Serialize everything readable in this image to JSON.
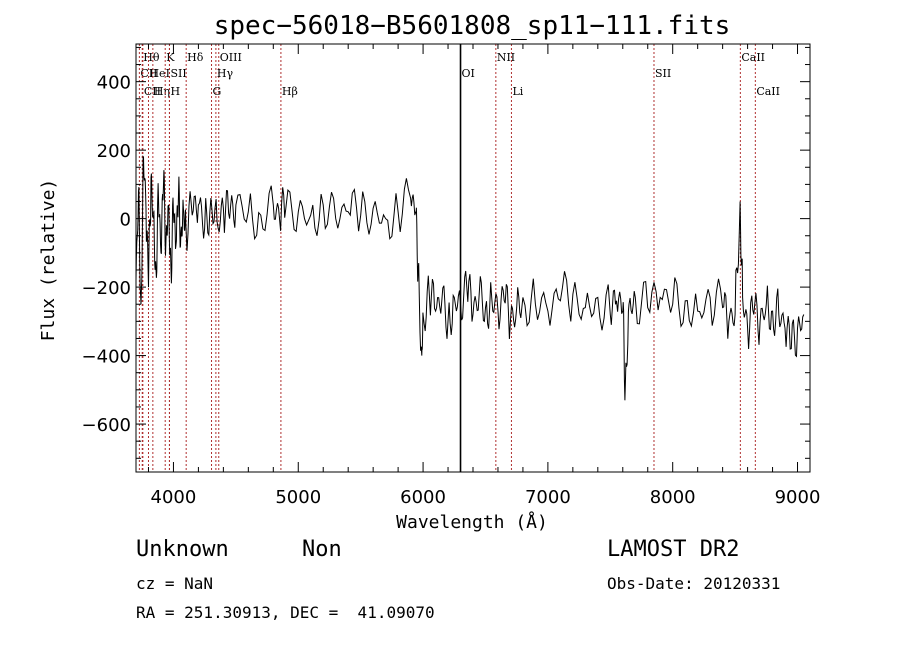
{
  "chart_data": {
    "type": "line",
    "title": "spec−56018−B5601808_sp11−111.fits",
    "xlabel": "Wavelength (Å)",
    "ylabel": "Flux (relative)",
    "xlim": [
      3700,
      9100
    ],
    "ylim": [
      -740,
      510
    ],
    "x_ticks": [
      {
        "value": 4000,
        "label": "4000"
      },
      {
        "value": 5000,
        "label": "5000"
      },
      {
        "value": 6000,
        "label": "6000"
      },
      {
        "value": 7000,
        "label": "7000"
      },
      {
        "value": 8000,
        "label": "8000"
      },
      {
        "value": 9000,
        "label": "9000"
      }
    ],
    "y_ticks": [
      {
        "value": 400,
        "label": "400"
      },
      {
        "value": 200,
        "label": "200"
      },
      {
        "value": 0,
        "label": "0"
      },
      {
        "value": -200,
        "label": "−200"
      },
      {
        "value": -400,
        "label": "−400"
      },
      {
        "value": -600,
        "label": "−600"
      }
    ],
    "grid": false,
    "series": [
      {
        "color": "#000000",
        "x": [
          3700,
          3720,
          3740,
          3760,
          3780,
          3800,
          3820,
          3840,
          3860,
          3880,
          3900,
          3920,
          3940,
          3960,
          3980,
          4000,
          4020,
          4040,
          4060,
          4080,
          4100,
          4150,
          4200,
          4250,
          4300,
          4350,
          4400,
          4450,
          4500,
          4600,
          4700,
          4800,
          4850,
          4900,
          5000,
          5100,
          5200,
          5300,
          5400,
          5500,
          5600,
          5700,
          5800,
          5900,
          5940,
          5960,
          5990,
          6000,
          6050,
          6100,
          6150,
          6200,
          6250,
          6300,
          6350,
          6400,
          6450,
          6500,
          6550,
          6600,
          6650,
          6700,
          6750,
          6800,
          6900,
          7000,
          7100,
          7200,
          7300,
          7400,
          7500,
          7550,
          7600,
          7620,
          7650,
          7700,
          7800,
          7900,
          8000,
          8100,
          8200,
          8300,
          8400,
          8450,
          8500,
          8540,
          8560,
          8600,
          8650,
          8700,
          8750,
          8800,
          8850,
          8900,
          8950,
          9000,
          9050
        ],
        "y": [
          -180,
          80,
          -250,
          180,
          30,
          -200,
          120,
          0,
          -150,
          60,
          -100,
          100,
          -60,
          40,
          -140,
          20,
          -80,
          60,
          -40,
          30,
          -20,
          10,
          40,
          -30,
          60,
          -10,
          30,
          0,
          40,
          20,
          10,
          40,
          0,
          30,
          20,
          10,
          40,
          0,
          20,
          10,
          30,
          0,
          20,
          60,
          20,
          -150,
          -400,
          -280,
          -220,
          -270,
          -240,
          -300,
          -230,
          -250,
          -200,
          -280,
          -220,
          -260,
          -230,
          -270,
          -240,
          -300,
          -260,
          -230,
          -250,
          -270,
          -240,
          -220,
          -260,
          -230,
          -280,
          -240,
          -270,
          -490,
          -250,
          -230,
          -260,
          -230,
          -250,
          -240,
          -270,
          -230,
          -260,
          -300,
          -280,
          50,
          -230,
          -320,
          -280,
          -300,
          -250,
          -270,
          -280,
          -320,
          -380,
          -320,
          -280
        ]
      }
    ],
    "lines": [
      {
        "label": "CII",
        "x": 3727,
        "row": 2,
        "color": "#000000"
      },
      {
        "label": "Hθ",
        "x": 3750,
        "row": 1,
        "color": "#000000"
      },
      {
        "label": "CII",
        "x": 3755,
        "row": 3,
        "color": "#000000"
      },
      {
        "label": "HeI",
        "x": 3800,
        "row": 2,
        "color": "#000000"
      },
      {
        "label": "Hη",
        "x": 3835,
        "row": 3,
        "color": "#000000"
      },
      {
        "label": "K",
        "x": 3934,
        "row": 1,
        "color": "#000000"
      },
      {
        "label": "SII",
        "x": 3968,
        "row": 2,
        "color": "#000000"
      },
      {
        "label": "H",
        "x": 3968,
        "row": 3,
        "color": "#000000"
      },
      {
        "label": "Hδ",
        "x": 4102,
        "row": 1,
        "color": "#000000"
      },
      {
        "label": "OIII",
        "x": 4363,
        "row": 1,
        "color": "#000000"
      },
      {
        "label": "Hγ",
        "x": 4340,
        "row": 2,
        "color": "#000000"
      },
      {
        "label": "G",
        "x": 4305,
        "row": 3,
        "color": "#000000"
      },
      {
        "label": "Hβ",
        "x": 4861,
        "row": 3,
        "color": "#000000"
      },
      {
        "label": "OI",
        "x": 6300,
        "row": 2,
        "color": "#000000"
      },
      {
        "label": "NII",
        "x": 6583,
        "row": 1,
        "color": "#000000"
      },
      {
        "label": "Li",
        "x": 6708,
        "row": 3,
        "color": "#000000"
      },
      {
        "label": "SII",
        "x": 7850,
        "row": 2,
        "color": "#000000"
      },
      {
        "label": "CaII",
        "x": 8542,
        "row": 1,
        "color": "#000000"
      },
      {
        "label": "CaII",
        "x": 8662,
        "row": 3,
        "color": "#000000"
      }
    ]
  },
  "info": {
    "class_label": "Unknown",
    "subclass_label": "Non",
    "survey": "LAMOST DR2",
    "cz": "cz = NaN",
    "obs_date": "Obs-Date: 20120331",
    "coords": "RA = 251.30913, DEC =  41.09070"
  }
}
